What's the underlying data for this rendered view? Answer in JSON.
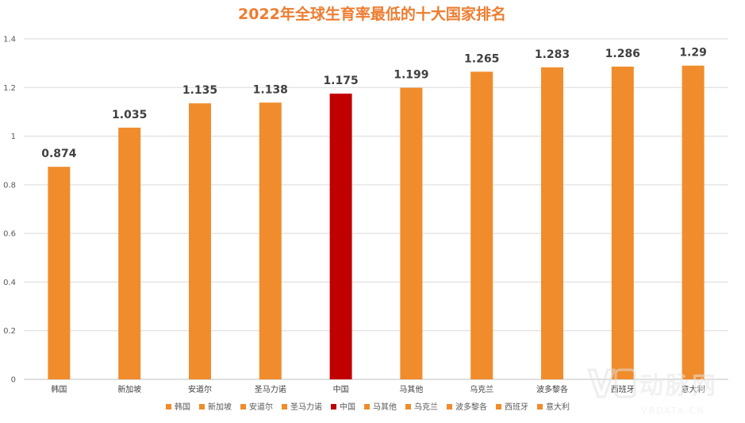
{
  "chart_data": {
    "type": "bar",
    "title": "2022年全球生育率最低的十大国家排名",
    "title_color": "#ed7d31",
    "categories": [
      "韩国",
      "新加坡",
      "安道尔",
      "圣马力诺",
      "中国",
      "马其他",
      "乌克兰",
      "波多黎各",
      "西班牙",
      "意大利"
    ],
    "values": [
      0.874,
      1.035,
      1.135,
      1.138,
      1.175,
      1.199,
      1.265,
      1.283,
      1.286,
      1.29
    ],
    "data_labels": [
      "0.874",
      "1.035",
      "1.135",
      "1.138",
      "1.175",
      "1.199",
      "1.265",
      "1.283",
      "1.286",
      "1.29"
    ],
    "colors": [
      "#f08c2c",
      "#f08c2c",
      "#f08c2c",
      "#f08c2c",
      "#c00000",
      "#f08c2c",
      "#f08c2c",
      "#f08c2c",
      "#f08c2c",
      "#f08c2c"
    ],
    "y_ticks": [
      "0",
      "0.2",
      "0.4",
      "0.6",
      "0.8",
      "1",
      "1.2",
      "1.4"
    ],
    "ylim": [
      0,
      1.4
    ],
    "grid": true,
    "legend_position": "bottom"
  },
  "watermark": {
    "logo_text": "动脉网",
    "url_text": "VBDATA.CN"
  }
}
